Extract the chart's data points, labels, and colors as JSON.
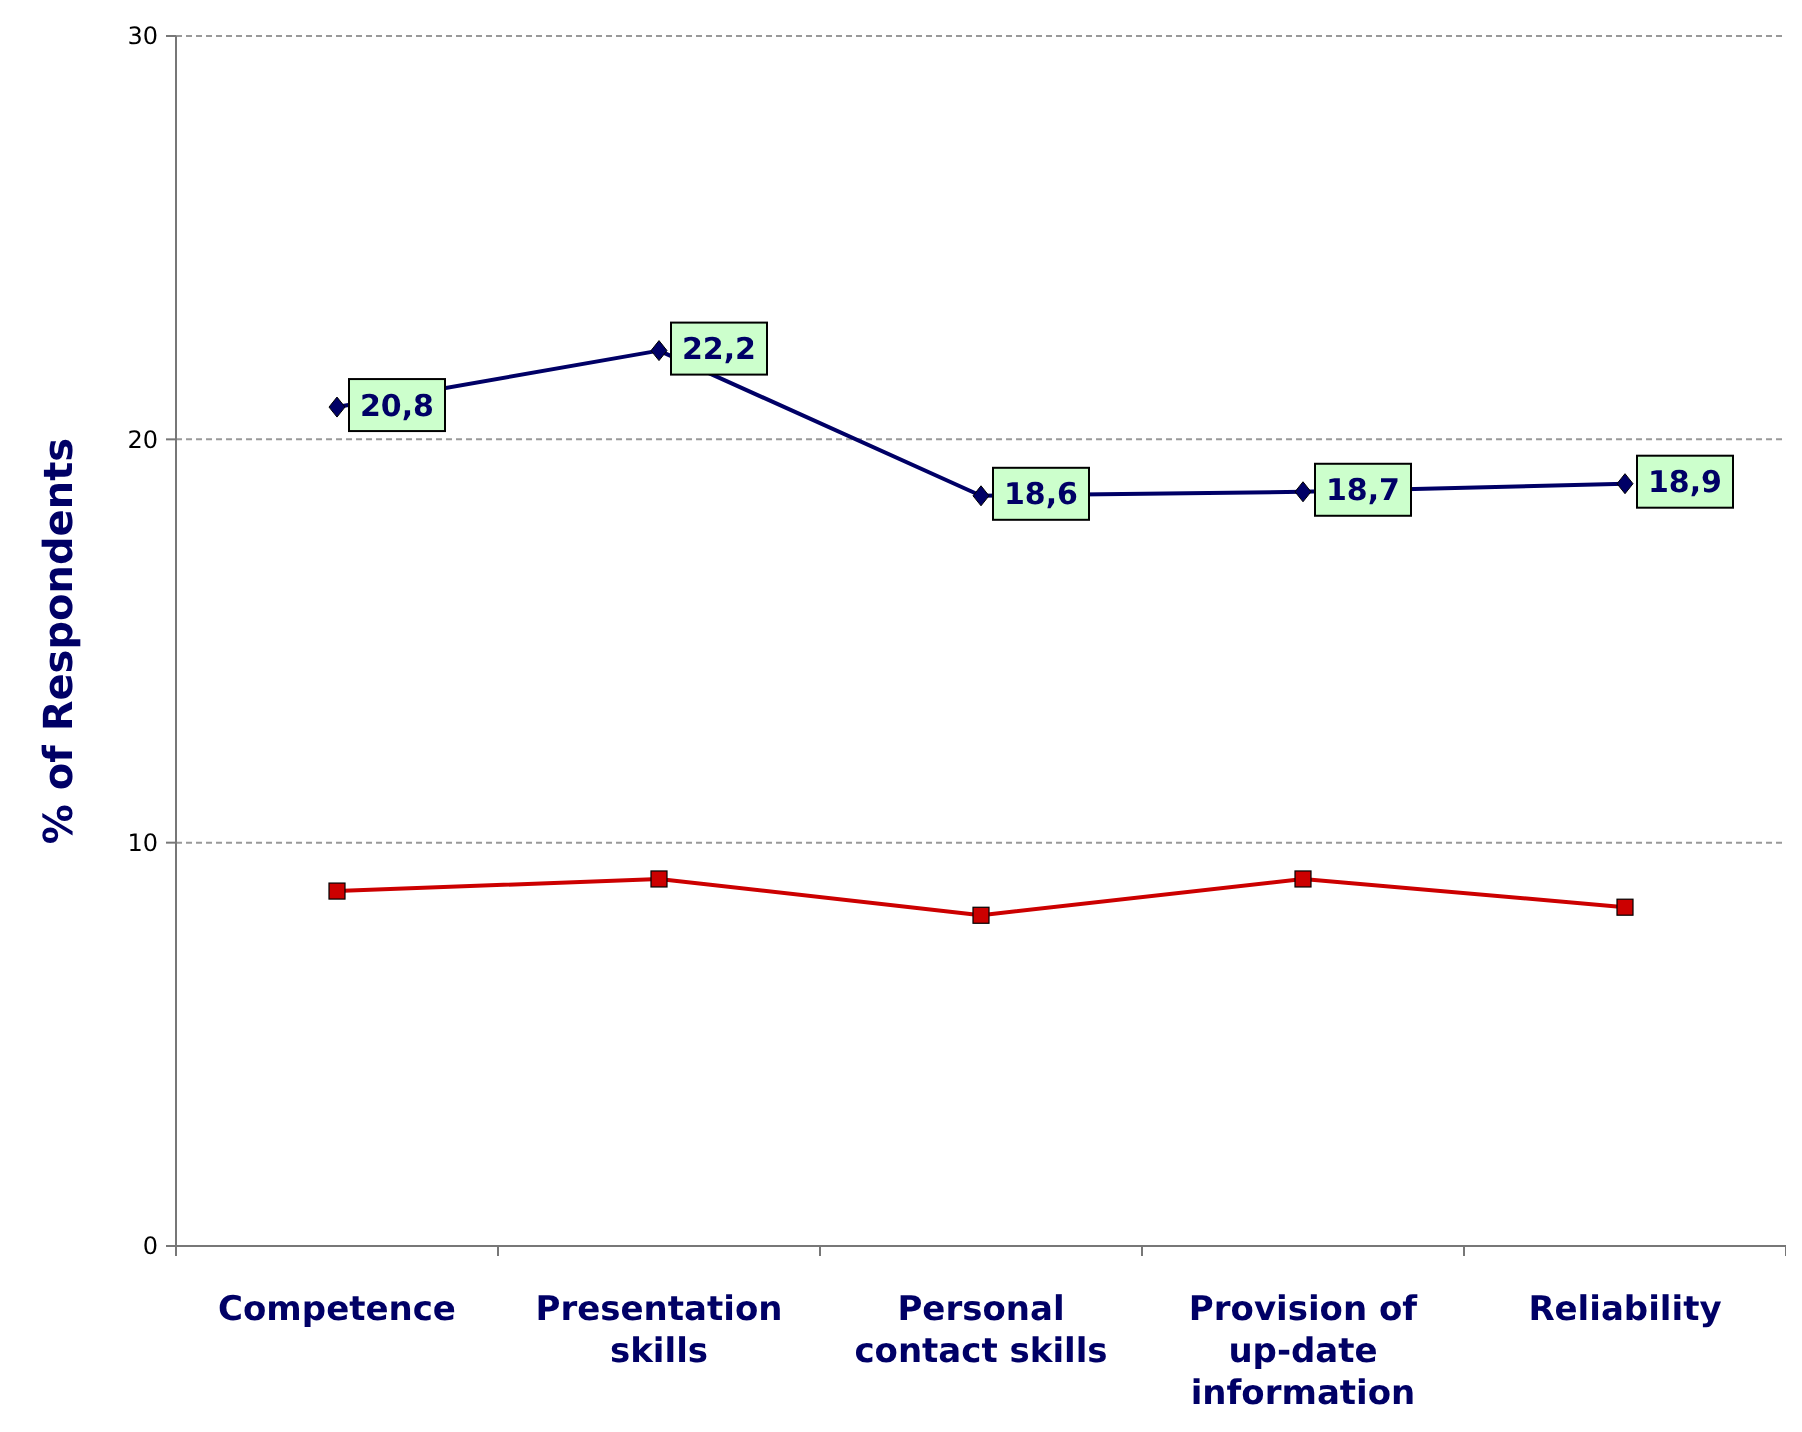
{
  "chart_data": {
    "type": "line",
    "ylabel": "% of Respondents",
    "categories": [
      "Competence",
      "Presentation skills",
      "Personal contact skills",
      "Provision of up-date information",
      "Reliability"
    ],
    "series": [
      {
        "color": "#000066",
        "marker": "diamond",
        "values": [
          20.8,
          22.2,
          18.6,
          18.7,
          18.9
        ],
        "value_labels": [
          "20,8",
          "22,2",
          "18,6",
          "18,7",
          "18,9"
        ]
      },
      {
        "color": "#cc0000",
        "marker": "square",
        "values": [
          8.8,
          9.1,
          8.2,
          9.1,
          8.4
        ]
      }
    ],
    "ylim": [
      0,
      30
    ],
    "yticks": [
      0,
      10,
      20,
      30
    ],
    "grid": "y"
  }
}
